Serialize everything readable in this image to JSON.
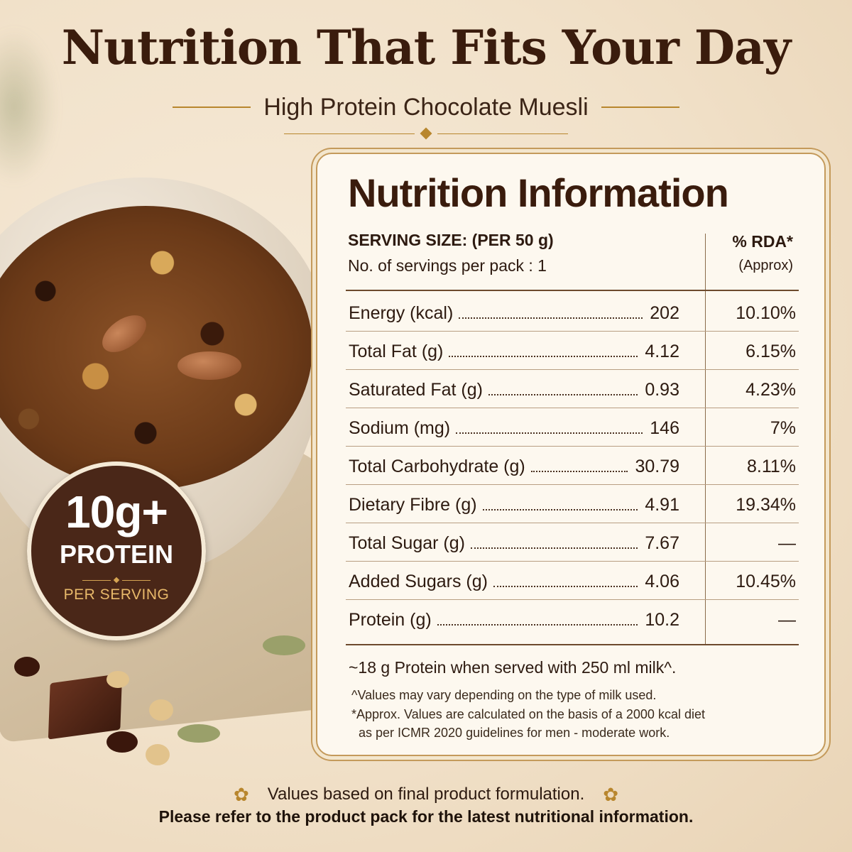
{
  "headline": "Nutrition That Fits Your Day",
  "subtitle": "High Protein Chocolate Muesli",
  "badge": {
    "amount": "10g+",
    "word": "PROTEIN",
    "caption": "PER SERVING"
  },
  "panel": {
    "title": "Nutrition Information",
    "serving_size": "SERVING SIZE: (PER 50 g)",
    "servings_per_pack": "No. of servings per pack : 1",
    "rda_header": "% RDA*",
    "rda_subheader": "(Approx)",
    "rows": [
      {
        "label": "Energy (kcal)",
        "value": "202",
        "rda": "10.10%"
      },
      {
        "label": "Total Fat (g)",
        "value": "4.12",
        "rda": "6.15%"
      },
      {
        "label": "Saturated Fat (g)",
        "value": "0.93",
        "rda": "4.23%"
      },
      {
        "label": "Sodium (mg)",
        "value": "146",
        "rda": "7%"
      },
      {
        "label": "Total Carbohydrate (g)",
        "value": "30.79",
        "rda": "8.11%"
      },
      {
        "label": "Dietary Fibre (g)",
        "value": "4.91",
        "rda": "19.34%"
      },
      {
        "label": "Total Sugar (g)",
        "value": "7.67",
        "rda": "—"
      },
      {
        "label": "Added Sugars (g)",
        "value": "4.06",
        "rda": "10.45%"
      },
      {
        "label": "Protein (g)",
        "value": "10.2",
        "rda": "—"
      }
    ],
    "milk_note": "~18 g Protein when served with 250 ml milk^.",
    "footnote_milk": "^Values may vary depending on the type of milk used.",
    "footnote_rda_line1": "*Approx. Values are calculated on the basis of a 2000 kcal diet",
    "footnote_rda_line2": "as per ICMR 2020 guidelines for men - moderate work."
  },
  "bottom": {
    "line1": "Values based on final product formulation.",
    "line2": "Please refer to the product pack for the latest nutritional information."
  },
  "colors": {
    "background": "#f1e1c9",
    "brown_text": "#3a1c0d",
    "gold_accent": "#b8862d",
    "badge_fill": "#4a2718",
    "panel_fill": "#fdf8ef"
  }
}
